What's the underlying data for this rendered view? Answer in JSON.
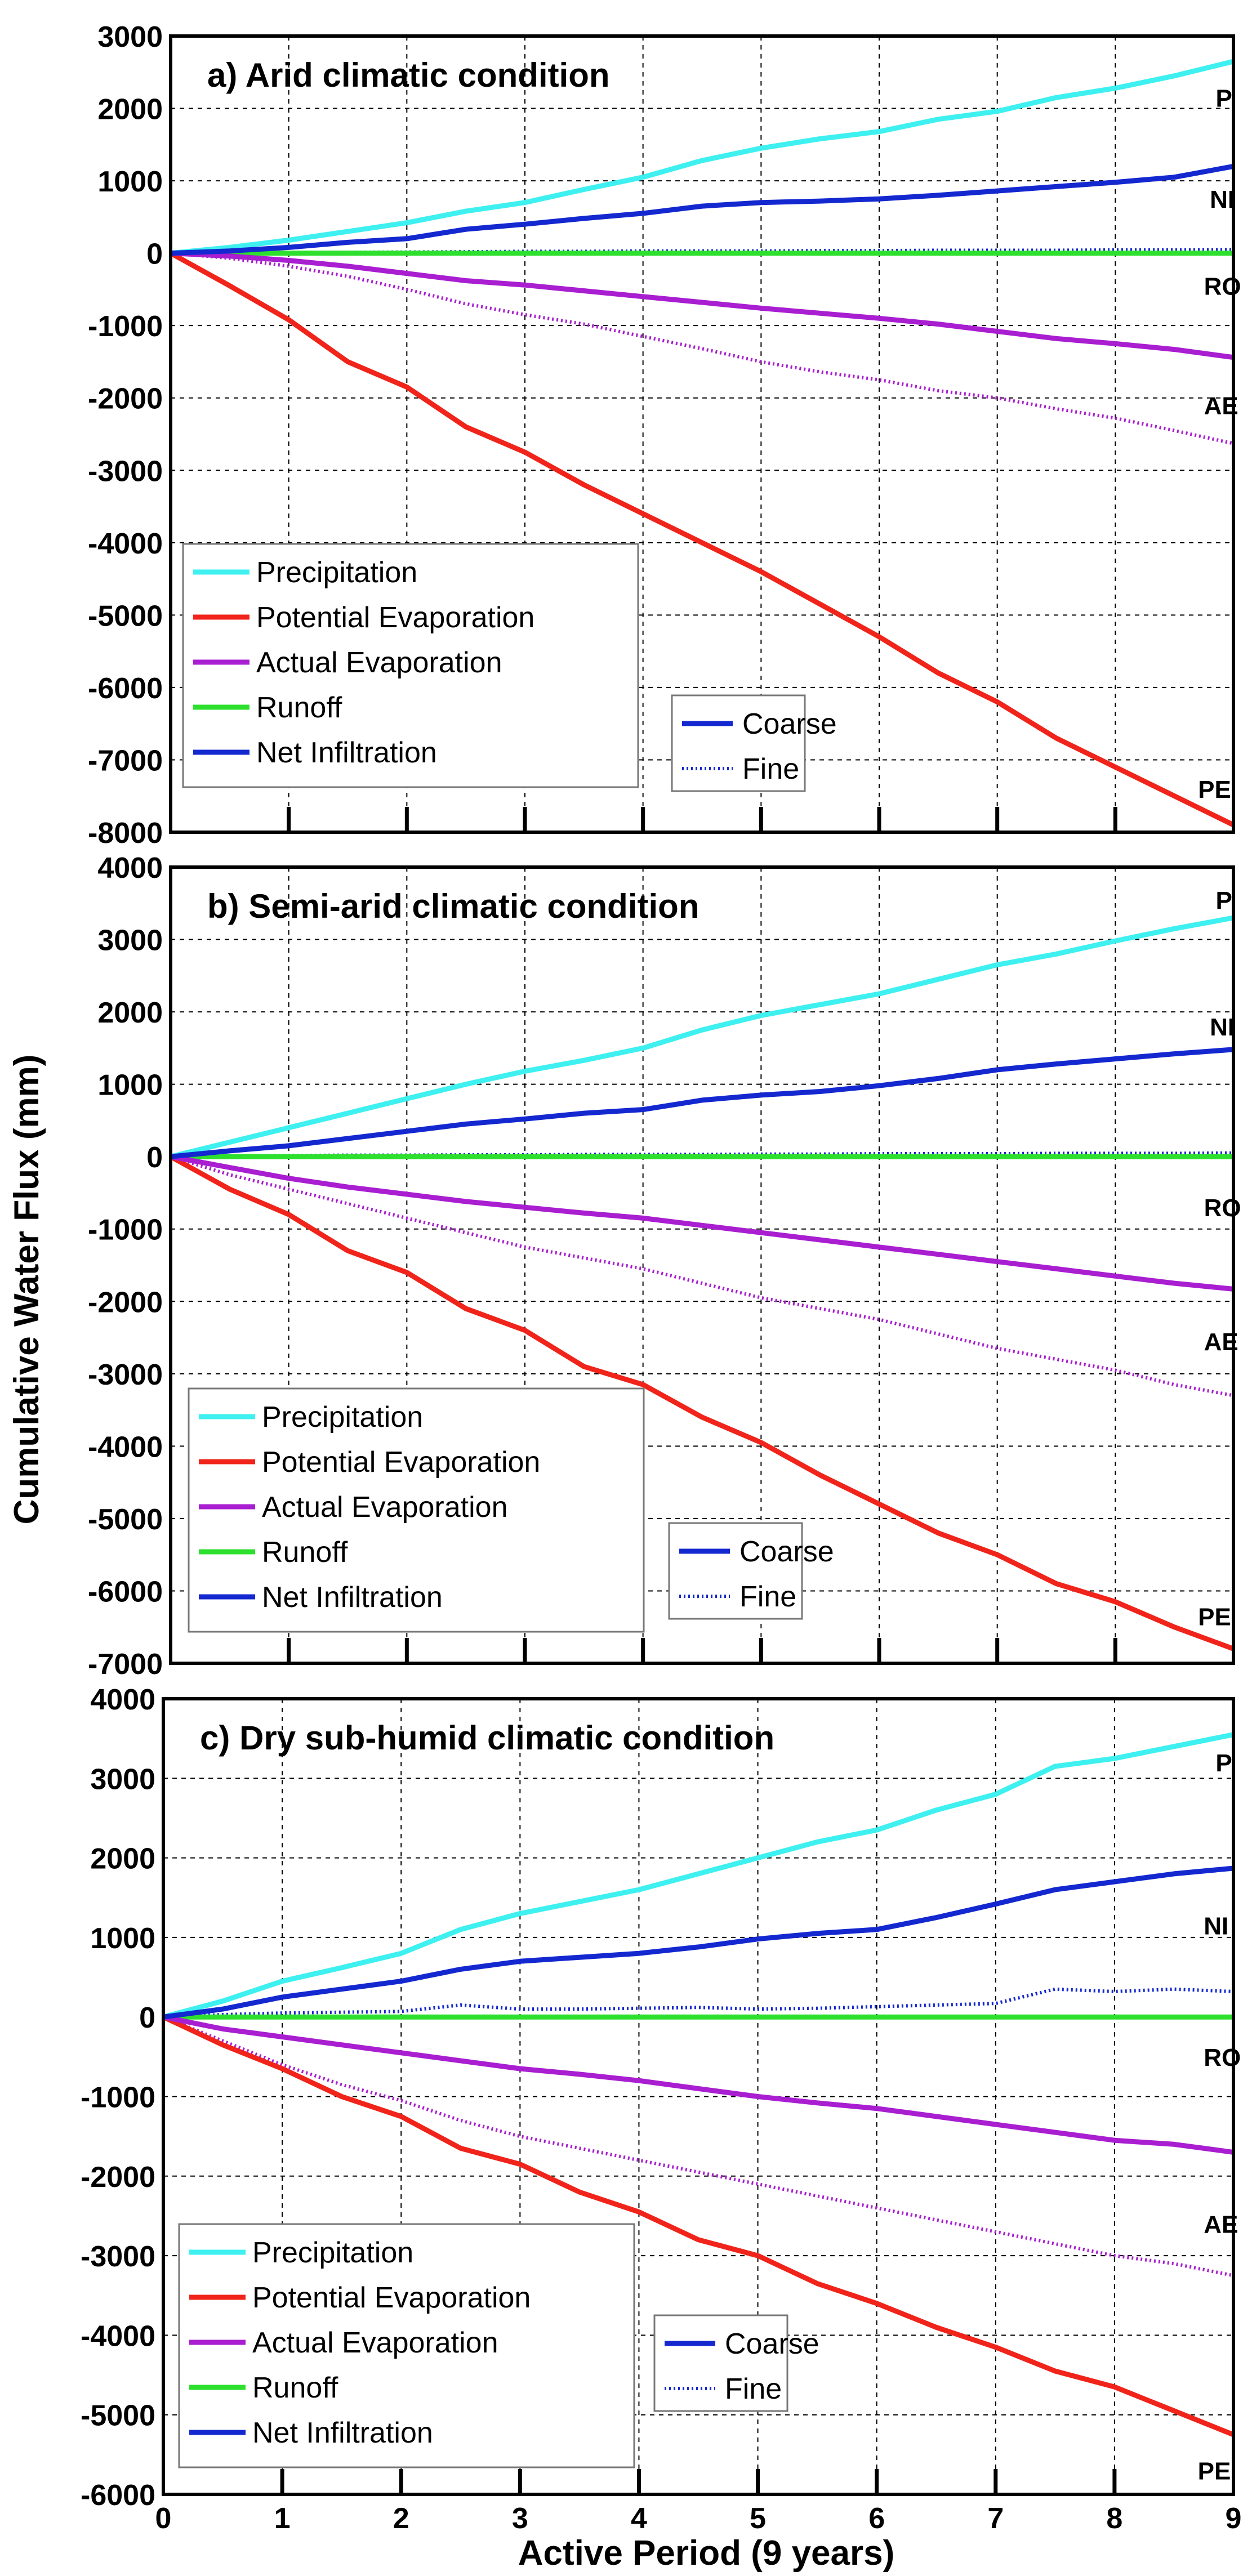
{
  "figure": {
    "xlabel": "Active Period (9 years)",
    "ylabel": "Cumulative Water Flux (mm)",
    "legend_variables": [
      {
        "name": "Precipitation",
        "color": "#3ff0f0"
      },
      {
        "name": "Potential Evaporation",
        "color": "#f0241a"
      },
      {
        "name": "Actual Evaporation",
        "color": "#a81ed0"
      },
      {
        "name": "Runoff",
        "color": "#2ee02e"
      },
      {
        "name": "Net Infiltration",
        "color": "#1428d0"
      }
    ],
    "legend_texture": [
      {
        "name": "Coarse",
        "style": "solid",
        "color": "#1428d0"
      },
      {
        "name": "Fine",
        "style": "dotted",
        "color": "#1428d0"
      }
    ]
  },
  "chart_data": [
    {
      "type": "line",
      "title": "a) Arid climatic condition",
      "xlabel": "Active Period (9 years)",
      "ylabel": "Cumulative Water Flux (mm)",
      "xlim": [
        0,
        9
      ],
      "ylim": [
        -8000,
        3000
      ],
      "xticks": [
        "0",
        "1",
        "2",
        "3",
        "4",
        "5",
        "6",
        "7",
        "8",
        "9"
      ],
      "yticks": [
        "3000",
        "2000",
        "1000",
        "0",
        "-1000",
        "-2000",
        "-3000",
        "-4000",
        "-5000",
        "-6000",
        "-7000",
        "-8000"
      ],
      "show_x_ticklabels": false,
      "grid": true,
      "x": [
        0,
        0.5,
        1,
        1.5,
        2,
        2.5,
        3,
        3.5,
        4,
        4.5,
        5,
        5.5,
        6,
        6.5,
        7,
        7.5,
        8,
        8.5,
        9
      ],
      "series": [
        {
          "name": "Precipitation",
          "texture": "Coarse",
          "color": "#3ff0f0",
          "style": "solid",
          "values": [
            0,
            80,
            180,
            300,
            420,
            580,
            700,
            880,
            1050,
            1280,
            1450,
            1580,
            1680,
            1850,
            1960,
            2150,
            2280,
            2450,
            2650
          ]
        },
        {
          "name": "Potential Evaporation",
          "texture": "Coarse",
          "color": "#f0241a",
          "style": "solid",
          "values": [
            0,
            -450,
            -920,
            -1500,
            -1850,
            -2400,
            -2750,
            -3200,
            -3600,
            -4000,
            -4400,
            -4850,
            -5300,
            -5800,
            -6200,
            -6700,
            -7100,
            -7500,
            -7900
          ]
        },
        {
          "name": "Actual Evaporation",
          "texture": "Coarse",
          "color": "#a81ed0",
          "style": "solid",
          "values": [
            0,
            -40,
            -100,
            -180,
            -280,
            -380,
            -440,
            -520,
            -600,
            -680,
            -760,
            -830,
            -900,
            -980,
            -1080,
            -1180,
            -1250,
            -1330,
            -1440
          ]
        },
        {
          "name": "Actual Evaporation",
          "texture": "Fine",
          "color": "#a81ed0",
          "style": "dotted",
          "values": [
            0,
            -70,
            -180,
            -320,
            -500,
            -700,
            -850,
            -980,
            -1150,
            -1320,
            -1500,
            -1640,
            -1750,
            -1900,
            -2000,
            -2150,
            -2280,
            -2450,
            -2630
          ]
        },
        {
          "name": "Runoff",
          "texture": "Coarse",
          "color": "#2ee02e",
          "style": "solid",
          "values": [
            0,
            0,
            0,
            0,
            0,
            0,
            0,
            0,
            0,
            0,
            0,
            0,
            0,
            0,
            0,
            0,
            0,
            0,
            0
          ]
        },
        {
          "name": "Net Infiltration",
          "texture": "Coarse",
          "color": "#1428d0",
          "style": "solid",
          "values": [
            0,
            30,
            80,
            150,
            200,
            330,
            400,
            480,
            550,
            650,
            700,
            720,
            750,
            800,
            860,
            920,
            980,
            1050,
            1200
          ]
        },
        {
          "name": "Net Infiltration",
          "texture": "Fine",
          "color": "#1428d0",
          "style": "dotted",
          "values": [
            0,
            5,
            10,
            12,
            15,
            20,
            25,
            25,
            30,
            30,
            30,
            35,
            35,
            40,
            40,
            40,
            45,
            45,
            50
          ]
        }
      ],
      "annotations": [
        {
          "text": "P",
          "x": 8.85,
          "y": 2150
        },
        {
          "text": "NI",
          "x": 8.8,
          "y": 750
        },
        {
          "text": "RO",
          "x": 8.75,
          "y": -450
        },
        {
          "text": "AE",
          "x": 8.75,
          "y": -2100
        },
        {
          "text": "PE",
          "x": 8.7,
          "y": -7400
        }
      ]
    },
    {
      "type": "line",
      "title": "b) Semi-arid climatic condition",
      "xlabel": "Active Period (9 years)",
      "ylabel": "Cumulative Water Flux (mm)",
      "xlim": [
        0,
        9
      ],
      "ylim": [
        -7000,
        4000
      ],
      "xticks": [
        "0",
        "1",
        "2",
        "3",
        "4",
        "5",
        "6",
        "7",
        "8",
        "9"
      ],
      "yticks": [
        "4000",
        "3000",
        "2000",
        "1000",
        "0",
        "-1000",
        "-2000",
        "-3000",
        "-4000",
        "-5000",
        "-6000",
        "-7000"
      ],
      "show_x_ticklabels": false,
      "grid": true,
      "x": [
        0,
        0.5,
        1,
        1.5,
        2,
        2.5,
        3,
        3.5,
        4,
        4.5,
        5,
        5.5,
        6,
        6.5,
        7,
        7.5,
        8,
        8.5,
        9
      ],
      "series": [
        {
          "name": "Precipitation",
          "texture": "Coarse",
          "color": "#3ff0f0",
          "style": "solid",
          "values": [
            0,
            200,
            400,
            600,
            800,
            1000,
            1180,
            1330,
            1500,
            1750,
            1950,
            2100,
            2250,
            2450,
            2650,
            2800,
            2980,
            3150,
            3300
          ]
        },
        {
          "name": "Potential Evaporation",
          "texture": "Coarse",
          "color": "#f0241a",
          "style": "solid",
          "values": [
            0,
            -450,
            -800,
            -1300,
            -1600,
            -2100,
            -2400,
            -2900,
            -3150,
            -3600,
            -3950,
            -4400,
            -4800,
            -5200,
            -5500,
            -5900,
            -6150,
            -6500,
            -6800
          ]
        },
        {
          "name": "Actual Evaporation",
          "texture": "Coarse",
          "color": "#a81ed0",
          "style": "solid",
          "values": [
            0,
            -150,
            -300,
            -420,
            -520,
            -620,
            -700,
            -780,
            -850,
            -950,
            -1050,
            -1150,
            -1250,
            -1350,
            -1450,
            -1550,
            -1650,
            -1750,
            -1830
          ]
        },
        {
          "name": "Actual Evaporation",
          "texture": "Fine",
          "color": "#a81ed0",
          "style": "dotted",
          "values": [
            0,
            -250,
            -450,
            -650,
            -850,
            -1050,
            -1250,
            -1400,
            -1550,
            -1750,
            -1950,
            -2100,
            -2250,
            -2450,
            -2650,
            -2800,
            -2950,
            -3150,
            -3300
          ]
        },
        {
          "name": "Runoff",
          "texture": "Coarse",
          "color": "#2ee02e",
          "style": "solid",
          "values": [
            0,
            0,
            0,
            0,
            0,
            0,
            0,
            0,
            0,
            0,
            0,
            0,
            0,
            0,
            0,
            0,
            0,
            0,
            0
          ]
        },
        {
          "name": "Net Infiltration",
          "texture": "Coarse",
          "color": "#1428d0",
          "style": "solid",
          "values": [
            0,
            80,
            150,
            250,
            350,
            450,
            520,
            600,
            650,
            780,
            850,
            900,
            980,
            1080,
            1200,
            1280,
            1350,
            1420,
            1480
          ]
        },
        {
          "name": "Net Infiltration",
          "texture": "Fine",
          "color": "#1428d0",
          "style": "dotted",
          "values": [
            0,
            10,
            15,
            20,
            20,
            25,
            25,
            30,
            30,
            30,
            35,
            35,
            40,
            40,
            40,
            45,
            45,
            45,
            50
          ]
        }
      ],
      "annotations": [
        {
          "text": "P",
          "x": 8.85,
          "y": 3550
        },
        {
          "text": "NI",
          "x": 8.8,
          "y": 1800
        },
        {
          "text": "RO",
          "x": 8.75,
          "y": -700
        },
        {
          "text": "AE",
          "x": 8.75,
          "y": -2550
        },
        {
          "text": "PE",
          "x": 8.7,
          "y": -6350
        }
      ]
    },
    {
      "type": "line",
      "title": "c) Dry sub-humid climatic condition",
      "xlabel": "Active Period (9 years)",
      "ylabel": "Cumulative Water Flux (mm)",
      "xlim": [
        0,
        9
      ],
      "ylim": [
        -6000,
        4000
      ],
      "xticks": [
        "0",
        "1",
        "2",
        "3",
        "4",
        "5",
        "6",
        "7",
        "8",
        "9"
      ],
      "yticks": [
        "4000",
        "3000",
        "2000",
        "1000",
        "0",
        "-1000",
        "-2000",
        "-3000",
        "-4000",
        "-5000",
        "-6000"
      ],
      "show_x_ticklabels": true,
      "grid": true,
      "x": [
        0,
        0.5,
        1,
        1.5,
        2,
        2.5,
        3,
        3.5,
        4,
        4.5,
        5,
        5.5,
        6,
        6.5,
        7,
        7.5,
        8,
        8.5,
        9
      ],
      "series": [
        {
          "name": "Precipitation",
          "texture": "Coarse",
          "color": "#3ff0f0",
          "style": "solid",
          "values": [
            0,
            200,
            450,
            620,
            800,
            1100,
            1300,
            1450,
            1600,
            1800,
            2000,
            2200,
            2350,
            2600,
            2800,
            3150,
            3250,
            3400,
            3550
          ]
        },
        {
          "name": "Potential Evaporation",
          "texture": "Coarse",
          "color": "#f0241a",
          "style": "solid",
          "values": [
            0,
            -350,
            -650,
            -1000,
            -1250,
            -1650,
            -1850,
            -2200,
            -2450,
            -2800,
            -3000,
            -3350,
            -3600,
            -3900,
            -4150,
            -4450,
            -4650,
            -4950,
            -5250
          ]
        },
        {
          "name": "Actual Evaporation",
          "texture": "Coarse",
          "color": "#a81ed0",
          "style": "solid",
          "values": [
            0,
            -150,
            -250,
            -350,
            -450,
            -550,
            -650,
            -720,
            -800,
            -900,
            -1000,
            -1080,
            -1150,
            -1250,
            -1350,
            -1450,
            -1550,
            -1600,
            -1700
          ]
        },
        {
          "name": "Actual Evaporation",
          "texture": "Fine",
          "color": "#a81ed0",
          "style": "dotted",
          "values": [
            0,
            -300,
            -600,
            -850,
            -1050,
            -1300,
            -1500,
            -1650,
            -1800,
            -1950,
            -2100,
            -2250,
            -2400,
            -2550,
            -2700,
            -2850,
            -3000,
            -3100,
            -3250
          ]
        },
        {
          "name": "Runoff",
          "texture": "Coarse",
          "color": "#2ee02e",
          "style": "solid",
          "values": [
            0,
            0,
            0,
            0,
            0,
            0,
            0,
            0,
            0,
            0,
            0,
            0,
            0,
            0,
            0,
            0,
            0,
            0,
            0
          ]
        },
        {
          "name": "Net Infiltration",
          "texture": "Coarse",
          "color": "#1428d0",
          "style": "solid",
          "values": [
            0,
            100,
            250,
            350,
            450,
            600,
            700,
            750,
            800,
            880,
            980,
            1050,
            1100,
            1250,
            1420,
            1600,
            1700,
            1800,
            1870
          ]
        },
        {
          "name": "Net Infiltration",
          "texture": "Fine",
          "color": "#1428d0",
          "style": "dotted",
          "values": [
            0,
            30,
            50,
            60,
            70,
            150,
            100,
            100,
            110,
            120,
            100,
            110,
            130,
            150,
            170,
            350,
            320,
            350,
            320
          ]
        }
      ],
      "annotations": [
        {
          "text": "P",
          "x": 8.85,
          "y": 3200
        },
        {
          "text": "NI",
          "x": 8.75,
          "y": 1150
        },
        {
          "text": "RO",
          "x": 8.75,
          "y": -500
        },
        {
          "text": "AE",
          "x": 8.75,
          "y": -2600
        },
        {
          "text": "PE",
          "x": 8.7,
          "y": -5700
        }
      ]
    }
  ]
}
